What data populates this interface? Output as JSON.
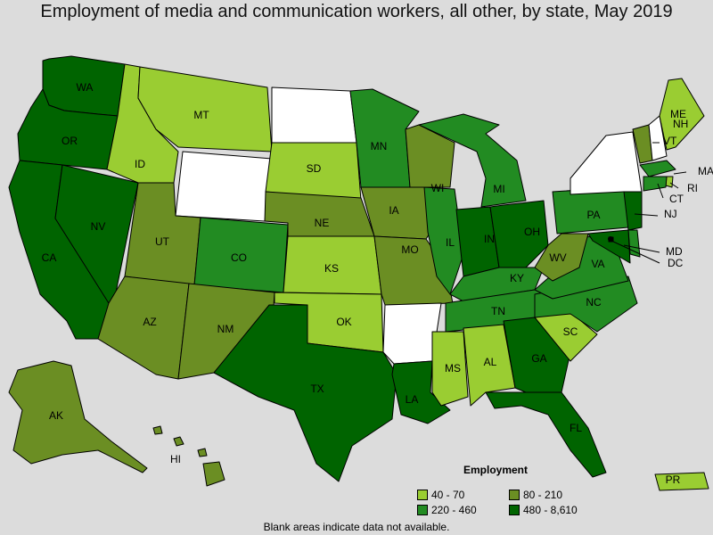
{
  "title": "Employment of media and communication workers, all other, by state, May 2019",
  "legend": {
    "title": "Employment",
    "items": [
      {
        "label": "40 - 70",
        "color": "#9acd32"
      },
      {
        "label": "80 - 210",
        "color": "#6b8e23"
      },
      {
        "label": "220 - 460",
        "color": "#228b22"
      },
      {
        "label": "480 - 8,610",
        "color": "#006400"
      }
    ]
  },
  "note": "Blank areas indicate data not available.",
  "states": [
    {
      "code": "WA",
      "label": "WA",
      "color": "#006400"
    },
    {
      "code": "OR",
      "label": "OR",
      "color": "#006400"
    },
    {
      "code": "CA",
      "label": "CA",
      "color": "#006400"
    },
    {
      "code": "NV",
      "label": "NV",
      "color": "#006400"
    },
    {
      "code": "ID",
      "label": "ID",
      "color": "#9acd32"
    },
    {
      "code": "MT",
      "label": "MT",
      "color": "#9acd32"
    },
    {
      "code": "WY",
      "label": "",
      "color": "#ffffff"
    },
    {
      "code": "UT",
      "label": "UT",
      "color": "#6b8e23"
    },
    {
      "code": "AZ",
      "label": "AZ",
      "color": "#6b8e23"
    },
    {
      "code": "CO",
      "label": "CO",
      "color": "#228b22"
    },
    {
      "code": "NM",
      "label": "NM",
      "color": "#6b8e23"
    },
    {
      "code": "ND",
      "label": "",
      "color": "#ffffff"
    },
    {
      "code": "SD",
      "label": "SD",
      "color": "#9acd32"
    },
    {
      "code": "NE",
      "label": "NE",
      "color": "#6b8e23"
    },
    {
      "code": "KS",
      "label": "KS",
      "color": "#9acd32"
    },
    {
      "code": "OK",
      "label": "OK",
      "color": "#9acd32"
    },
    {
      "code": "TX",
      "label": "TX",
      "color": "#006400"
    },
    {
      "code": "MN",
      "label": "MN",
      "color": "#228b22"
    },
    {
      "code": "IA",
      "label": "IA",
      "color": "#6b8e23"
    },
    {
      "code": "MO",
      "label": "MO",
      "color": "#6b8e23"
    },
    {
      "code": "AR",
      "label": "",
      "color": "#ffffff"
    },
    {
      "code": "LA",
      "label": "LA",
      "color": "#006400"
    },
    {
      "code": "WI",
      "label": "WI",
      "color": "#6b8e23"
    },
    {
      "code": "IL",
      "label": "IL",
      "color": "#228b22"
    },
    {
      "code": "MI",
      "label": "MI",
      "color": "#228b22"
    },
    {
      "code": "IN",
      "label": "IN",
      "color": "#006400"
    },
    {
      "code": "OH",
      "label": "OH",
      "color": "#006400"
    },
    {
      "code": "KY",
      "label": "KY",
      "color": "#228b22"
    },
    {
      "code": "TN",
      "label": "TN",
      "color": "#228b22"
    },
    {
      "code": "MS",
      "label": "MS",
      "color": "#9acd32"
    },
    {
      "code": "AL",
      "label": "AL",
      "color": "#9acd32"
    },
    {
      "code": "GA",
      "label": "GA",
      "color": "#006400"
    },
    {
      "code": "FL",
      "label": "FL",
      "color": "#006400"
    },
    {
      "code": "SC",
      "label": "SC",
      "color": "#9acd32"
    },
    {
      "code": "NC",
      "label": "NC",
      "color": "#228b22"
    },
    {
      "code": "VA",
      "label": "VA",
      "color": "#228b22"
    },
    {
      "code": "WV",
      "label": "WV",
      "color": "#6b8e23"
    },
    {
      "code": "PA",
      "label": "PA",
      "color": "#228b22"
    },
    {
      "code": "NY",
      "label": "",
      "color": "#ffffff"
    },
    {
      "code": "VT",
      "label": "VT",
      "color": "#6b8e23"
    },
    {
      "code": "NH",
      "label": "NH",
      "color": "#ffffff"
    },
    {
      "code": "ME",
      "label": "ME",
      "color": "#9acd32"
    },
    {
      "code": "MA",
      "label": "MA",
      "color": "#228b22"
    },
    {
      "code": "RI",
      "label": "RI",
      "color": "#9acd32"
    },
    {
      "code": "CT",
      "label": "CT",
      "color": "#228b22"
    },
    {
      "code": "NJ",
      "label": "NJ",
      "color": "#006400"
    },
    {
      "code": "DE",
      "label": "",
      "color": "#228b22"
    },
    {
      "code": "MD",
      "label": "MD",
      "color": "#006400"
    },
    {
      "code": "DC",
      "label": "DC",
      "color": "#000000"
    },
    {
      "code": "AK",
      "label": "AK",
      "color": "#6b8e23"
    },
    {
      "code": "HI",
      "label": "HI",
      "color": "#6b8e23"
    },
    {
      "code": "PR",
      "label": "PR",
      "color": "#9acd32"
    }
  ]
}
